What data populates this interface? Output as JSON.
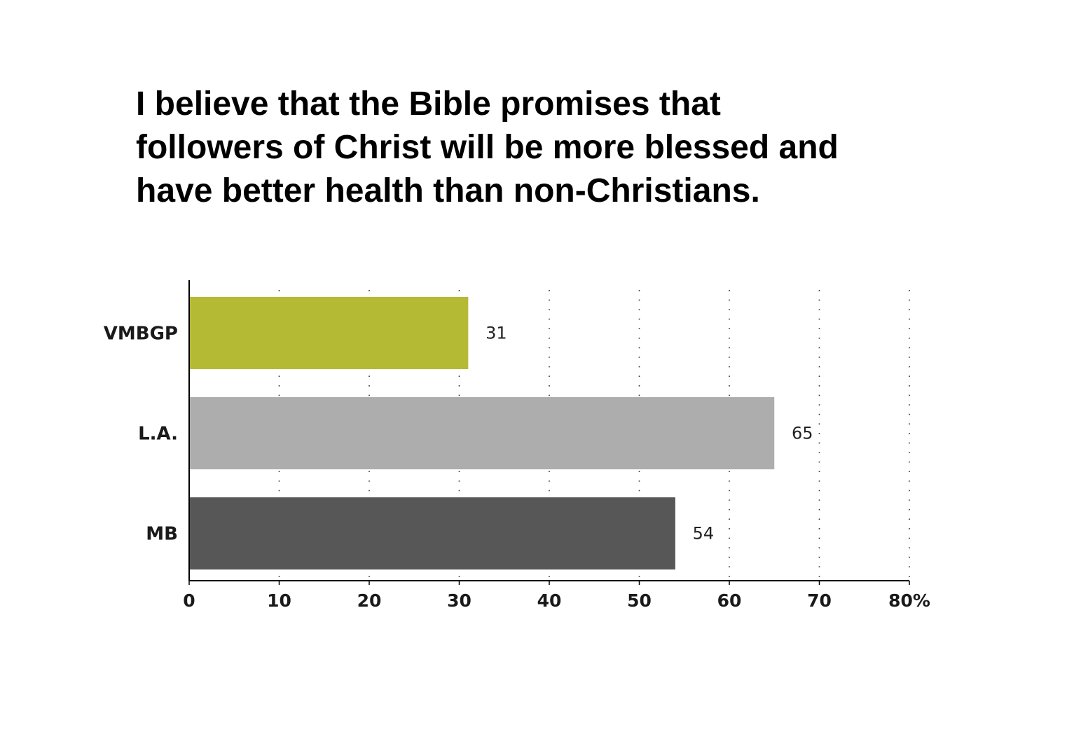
{
  "chart_data": {
    "type": "bar",
    "orientation": "horizontal",
    "title_lines": [
      "I believe that the Bible promises that",
      "followers of Christ will be more blessed and",
      "have better health than non-Christians."
    ],
    "categories": [
      "VMBGP",
      "L.A.",
      "MB"
    ],
    "values": [
      31,
      65,
      54
    ],
    "data_labels": [
      "31",
      "65",
      "54"
    ],
    "colors": [
      "#b5ba34",
      "#adadad",
      "#575757"
    ],
    "xlim": [
      0,
      80
    ],
    "xticks": [
      0,
      10,
      20,
      30,
      40,
      50,
      60,
      70,
      80
    ],
    "xtick_labels": [
      "0",
      "10",
      "20",
      "30",
      "40",
      "50",
      "60",
      "70",
      "80%"
    ],
    "grid": "vertical dotted",
    "legend": "none"
  }
}
